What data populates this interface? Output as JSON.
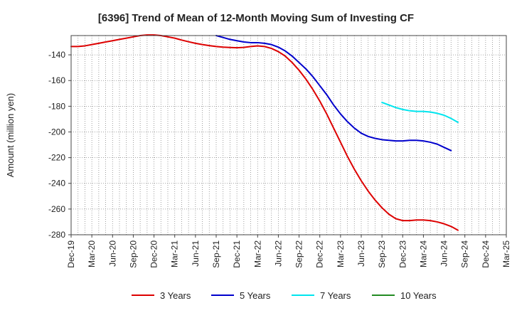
{
  "chart_data": {
    "type": "line",
    "title": "[6396]  Trend of Mean of 12-Month Moving Sum of Investing CF",
    "xlabel": "",
    "ylabel": "Amount (million yen)",
    "ylim": [
      -280,
      -125
    ],
    "yticks": [
      -140,
      -160,
      -180,
      -200,
      -220,
      -240,
      -260,
      -280
    ],
    "x_tick_labels": [
      "Dec-19",
      "Mar-20",
      "Jun-20",
      "Sep-20",
      "Dec-20",
      "Mar-21",
      "Jun-21",
      "Sep-21",
      "Dec-21",
      "Mar-22",
      "Jun-22",
      "Sep-22",
      "Dec-22",
      "Mar-23",
      "Jun-23",
      "Sep-23",
      "Dec-23",
      "Mar-24",
      "Jun-24",
      "Sep-24",
      "Dec-24",
      "Mar-25"
    ],
    "months": [
      "Dec-19",
      "Jan-20",
      "Feb-20",
      "Mar-20",
      "Apr-20",
      "May-20",
      "Jun-20",
      "Jul-20",
      "Aug-20",
      "Sep-20",
      "Oct-20",
      "Nov-20",
      "Dec-20",
      "Jan-21",
      "Feb-21",
      "Mar-21",
      "Apr-21",
      "May-21",
      "Jun-21",
      "Jul-21",
      "Aug-21",
      "Sep-21",
      "Oct-21",
      "Nov-21",
      "Dec-21",
      "Jan-22",
      "Feb-22",
      "Mar-22",
      "Apr-22",
      "May-22",
      "Jun-22",
      "Jul-22",
      "Aug-22",
      "Sep-22",
      "Oct-22",
      "Nov-22",
      "Dec-22",
      "Jan-23",
      "Feb-23",
      "Mar-23",
      "Apr-23",
      "May-23",
      "Jun-23",
      "Jul-23",
      "Aug-23",
      "Sep-23",
      "Oct-23",
      "Nov-23",
      "Dec-23",
      "Jan-24",
      "Feb-24",
      "Mar-24",
      "Apr-24",
      "May-24",
      "Jun-24",
      "Jul-24",
      "Aug-24",
      "Sep-24",
      "Oct-24",
      "Nov-24",
      "Dec-24",
      "Jan-25",
      "Feb-25",
      "Mar-25"
    ],
    "series": [
      {
        "name": "3 Years",
        "color": "#dd0000",
        "start": "Dec-19",
        "values": [
          -133.5,
          -133.5,
          -133,
          -132,
          -131,
          -130,
          -129,
          -128,
          -127,
          -126,
          -125,
          -124.5,
          -124.5,
          -125,
          -126,
          -127,
          -128.5,
          -129.8,
          -131,
          -132,
          -132.8,
          -133.5,
          -134,
          -134.3,
          -134.5,
          -134.2,
          -133.5,
          -133,
          -133.5,
          -135,
          -137.5,
          -141,
          -146,
          -152,
          -159,
          -167,
          -176,
          -186,
          -197,
          -208,
          -219,
          -229,
          -238,
          -246,
          -253,
          -259,
          -264,
          -267.5,
          -269,
          -269,
          -268.5,
          -268.5,
          -269,
          -270,
          -271.5,
          -273.5,
          -276.5
        ]
      },
      {
        "name": "5 Years",
        "color": "#0000cc",
        "start": "Sep-21",
        "values": [
          -125,
          -126.5,
          -128,
          -129,
          -130,
          -130.5,
          -130.5,
          -131,
          -132,
          -134,
          -137,
          -141,
          -146,
          -151,
          -157,
          -164,
          -171,
          -179,
          -186,
          -192,
          -197,
          -201,
          -203.5,
          -205,
          -206,
          -206.5,
          -207,
          -207,
          -206.5,
          -206.5,
          -207,
          -208,
          -209.5,
          -212,
          -214.5
        ]
      },
      {
        "name": "7 Years",
        "color": "#00e5ee",
        "start": "Sep-23",
        "values": [
          -177,
          -179,
          -181,
          -182.5,
          -183.5,
          -184,
          -184,
          -184.5,
          -185.5,
          -187,
          -189.5,
          -192.5
        ]
      },
      {
        "name": "10 Years",
        "color": "#228b22",
        "start": null,
        "values": []
      }
    ]
  }
}
